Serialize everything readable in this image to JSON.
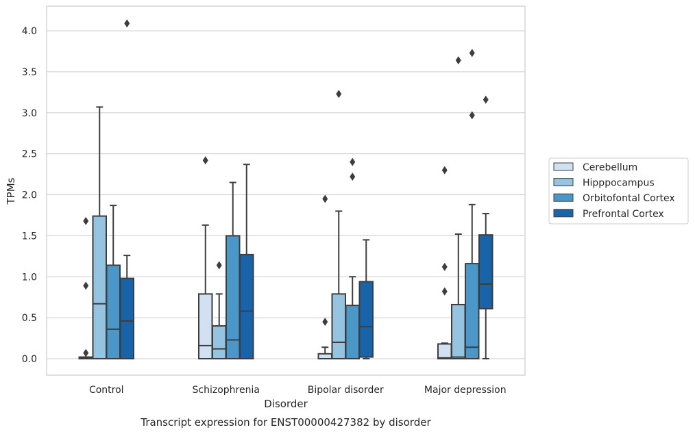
{
  "chart_data": {
    "type": "boxplot",
    "title": "",
    "caption": "Transcript expression for ENST00000427382 by disorder",
    "xlabel": "Disorder",
    "ylabel": "TPMs",
    "ylim": [
      -0.2,
      4.3
    ],
    "yticks": [
      "0.0",
      "0.5",
      "1.0",
      "1.5",
      "2.0",
      "2.5",
      "3.0",
      "3.5",
      "4.0"
    ],
    "grid": "horizontal",
    "legend_position": "right",
    "categories": [
      "Control",
      "Schizophrenia",
      "Bipolar disorder",
      "Major depression"
    ],
    "series": [
      {
        "name": "Cerebellum",
        "color": "#d0e1f2",
        "boxes": [
          {
            "q1": 0.0,
            "median": 0.01,
            "q3": 0.02,
            "whisker_low": 0.0,
            "whisker_high": 0.02,
            "outliers": [
              0.07,
              0.89,
              1.68
            ]
          },
          {
            "q1": 0.0,
            "median": 0.16,
            "q3": 0.79,
            "whisker_low": 0.0,
            "whisker_high": 1.63,
            "outliers": [
              2.42
            ]
          },
          {
            "q1": 0.0,
            "median": 0.0,
            "q3": 0.06,
            "whisker_low": 0.0,
            "whisker_high": 0.14,
            "outliers": [
              0.45,
              1.95
            ]
          },
          {
            "q1": 0.0,
            "median": 0.01,
            "q3": 0.18,
            "whisker_low": 0.0,
            "whisker_high": 0.19,
            "outliers": [
              0.82,
              1.12,
              2.3
            ]
          }
        ]
      },
      {
        "name": "Hipppocampus",
        "color": "#94c4df",
        "boxes": [
          {
            "q1": 0.0,
            "median": 0.67,
            "q3": 1.74,
            "whisker_low": 0.0,
            "whisker_high": 3.07,
            "outliers": []
          },
          {
            "q1": 0.0,
            "median": 0.12,
            "q3": 0.4,
            "whisker_low": 0.0,
            "whisker_high": 0.79,
            "outliers": [
              1.14
            ]
          },
          {
            "q1": 0.0,
            "median": 0.2,
            "q3": 0.79,
            "whisker_low": 0.0,
            "whisker_high": 1.8,
            "outliers": [
              3.23
            ]
          },
          {
            "q1": 0.0,
            "median": 0.02,
            "q3": 0.66,
            "whisker_low": 0.0,
            "whisker_high": 1.52,
            "outliers": [
              3.64
            ]
          }
        ]
      },
      {
        "name": "Orbitofontal Cortex",
        "color": "#4a98c9",
        "boxes": [
          {
            "q1": 0.0,
            "median": 0.36,
            "q3": 1.14,
            "whisker_low": 0.0,
            "whisker_high": 1.87,
            "outliers": []
          },
          {
            "q1": 0.0,
            "median": 0.23,
            "q3": 1.5,
            "whisker_low": 0.0,
            "whisker_high": 2.15,
            "outliers": []
          },
          {
            "q1": 0.0,
            "median": 0.0,
            "q3": 0.65,
            "whisker_low": 0.0,
            "whisker_high": 1.0,
            "outliers": [
              2.22,
              2.4
            ]
          },
          {
            "q1": 0.0,
            "median": 0.14,
            "q3": 1.16,
            "whisker_low": 0.0,
            "whisker_high": 1.88,
            "outliers": [
              2.97,
              3.73
            ]
          }
        ]
      },
      {
        "name": "Prefrontal Cortex",
        "color": "#1764ab",
        "boxes": [
          {
            "q1": 0.0,
            "median": 0.46,
            "q3": 0.98,
            "whisker_low": 0.0,
            "whisker_high": 1.26,
            "outliers": [
              4.09
            ]
          },
          {
            "q1": 0.0,
            "median": 0.58,
            "q3": 1.27,
            "whisker_low": 0.0,
            "whisker_high": 2.37,
            "outliers": []
          },
          {
            "q1": 0.02,
            "median": 0.39,
            "q3": 0.94,
            "whisker_low": 0.0,
            "whisker_high": 1.45,
            "outliers": []
          },
          {
            "q1": 0.61,
            "median": 0.91,
            "q3": 1.51,
            "whisker_low": 0.0,
            "whisker_high": 1.77,
            "outliers": [
              3.16
            ]
          }
        ]
      }
    ]
  }
}
